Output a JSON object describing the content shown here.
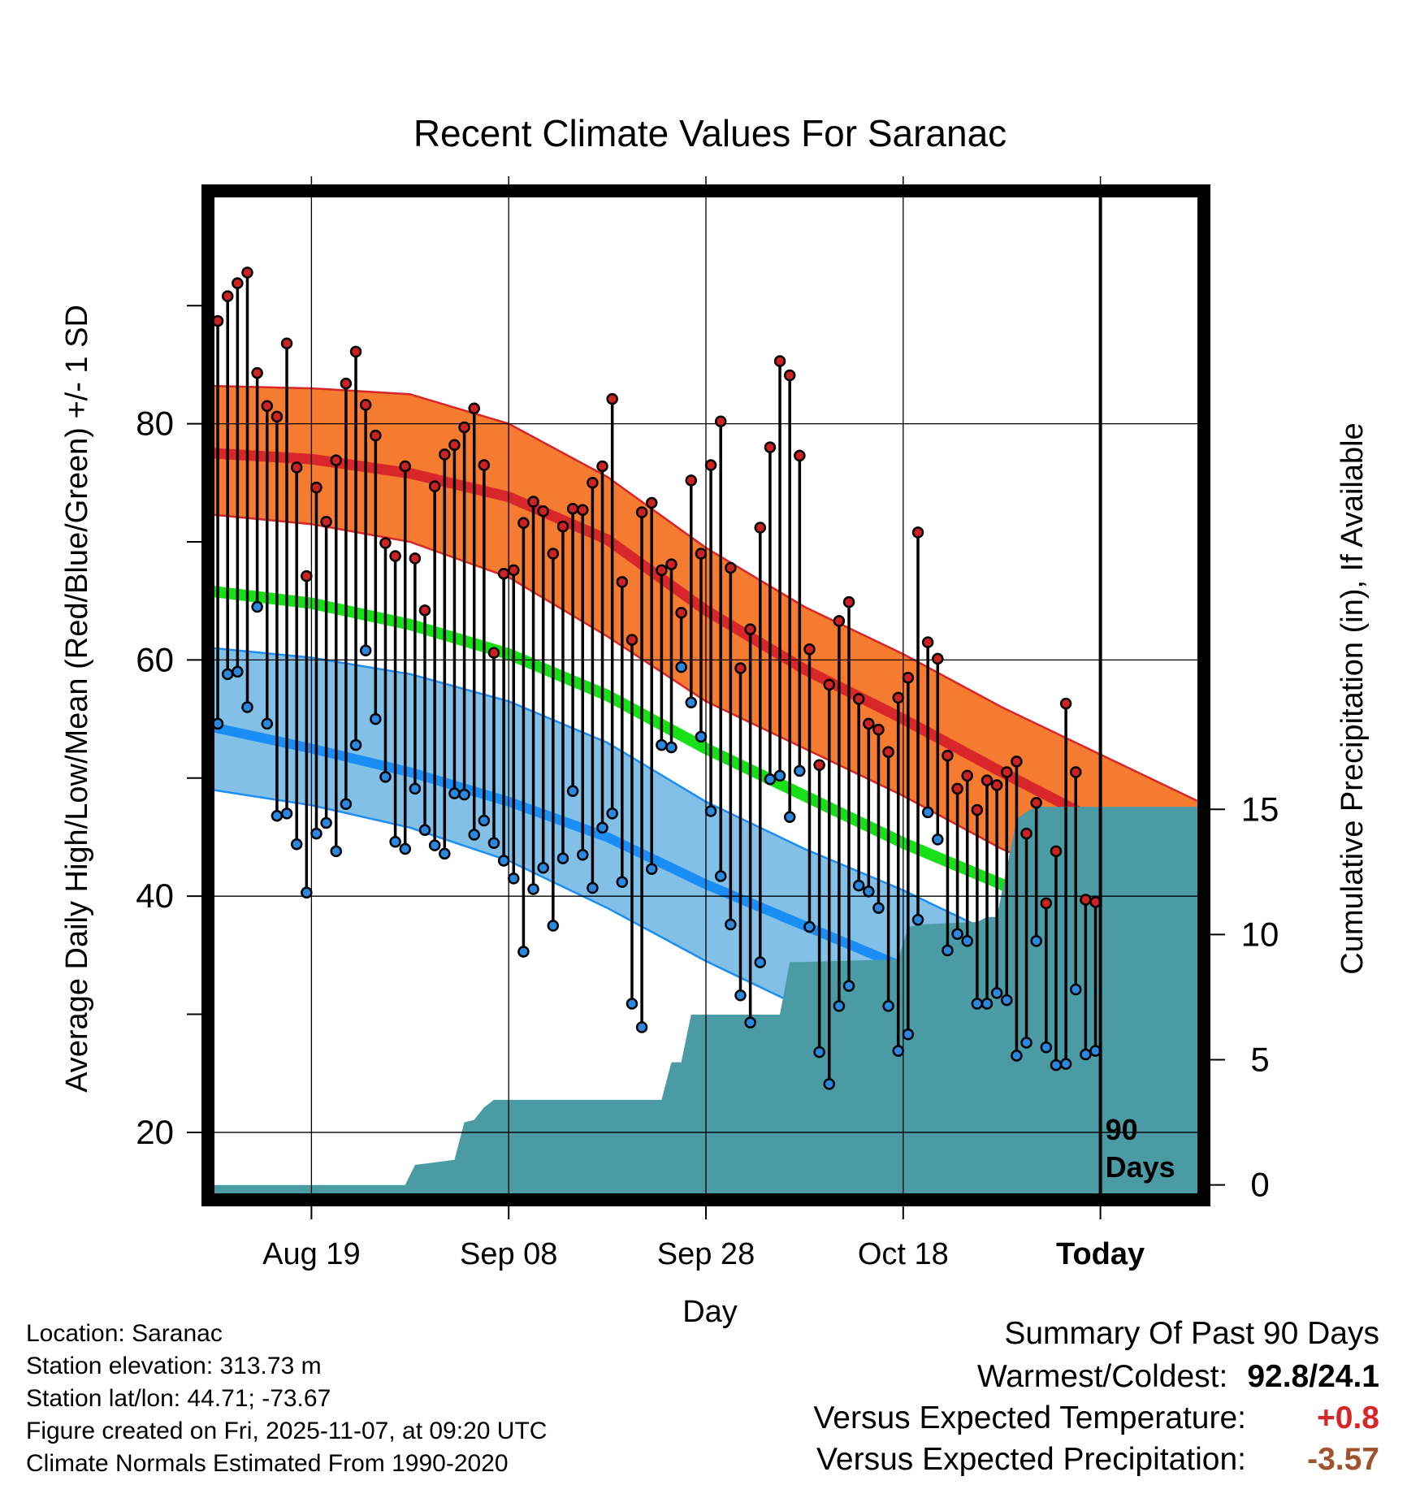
{
  "chart_data": {
    "type": "climate-daily",
    "title": "Recent Climate Values For Saranac",
    "xlabel": "Day",
    "ylabel_left": "Average Daily High/Low/Mean (Red/Blue/Green) +/- 1 SD",
    "ylabel_right": "Cumulative Precipitation (in), If Available",
    "x_ticks": [
      {
        "day": 10,
        "label": "Aug 19"
      },
      {
        "day": 30,
        "label": "Sep 08"
      },
      {
        "day": 50,
        "label": "Sep 28"
      },
      {
        "day": 70,
        "label": "Oct 18"
      },
      {
        "day": 90,
        "label": "Today"
      }
    ],
    "xlim": [
      0,
      100
    ],
    "y_left_ticks": [
      20,
      40,
      60,
      80
    ],
    "y_left_minor_ticks": [
      30,
      50,
      70,
      90
    ],
    "ylim_left": [
      14.7,
      99.3
    ],
    "y_right_ticks": [
      0,
      5,
      10,
      15
    ],
    "ylim_right": [
      -0.4,
      39.5
    ],
    "today_marker": {
      "day": 90,
      "label_line1": "90",
      "label_line2": "Days"
    },
    "normals": {
      "days": [
        0,
        10,
        20,
        30,
        40,
        50,
        60,
        70,
        80,
        90,
        100
      ],
      "high_mean": [
        77.5,
        77.0,
        75.8,
        73.8,
        70.2,
        64.2,
        59.2,
        55.0,
        50.5,
        46.2,
        42.0
      ],
      "high_sd_upper": [
        83.2,
        83.0,
        82.5,
        80.0,
        75.5,
        69.5,
        64.5,
        60.5,
        56.0,
        52.0,
        48.0
      ],
      "high_sd_lower": [
        72.3,
        71.5,
        70.0,
        67.0,
        62.0,
        56.5,
        52.5,
        48.5,
        44.0,
        40.5,
        36.5
      ],
      "daily_mean": [
        65.8,
        64.8,
        63.0,
        60.5,
        57.0,
        52.5,
        48.5,
        44.5,
        41.0,
        36.5,
        32.5
      ],
      "low_mean": [
        54.3,
        52.5,
        50.5,
        48.0,
        45.0,
        41.0,
        37.5,
        34.0,
        30.5,
        27.2,
        23.5
      ],
      "low_sd_upper": [
        61.0,
        60.2,
        58.8,
        56.5,
        53.0,
        48.0,
        44.0,
        40.5,
        36.5,
        32.5,
        28.5
      ],
      "low_sd_lower": [
        49.0,
        47.7,
        45.8,
        43.0,
        39.0,
        34.5,
        30.5,
        26.5,
        22.5,
        18.5,
        15.0
      ]
    },
    "observations": {
      "highs": [
        88.7,
        90.8,
        91.9,
        92.8,
        84.3,
        81.5,
        80.6,
        86.8,
        76.3,
        67.1,
        74.6,
        71.7,
        76.9,
        83.4,
        86.1,
        81.6,
        79.0,
        69.9,
        68.8,
        76.4,
        68.6,
        64.2,
        74.7,
        77.4,
        78.2,
        79.7,
        81.3,
        76.5,
        60.6,
        67.3,
        67.6,
        71.6,
        73.4,
        72.6,
        69.0,
        71.3,
        72.8,
        72.7,
        75.0,
        76.4,
        82.1,
        66.6,
        61.7,
        72.5,
        73.3,
        67.6,
        68.1,
        64.0,
        75.2,
        69.0,
        76.5,
        80.2,
        67.8,
        59.3,
        62.6,
        71.2,
        78.0,
        85.3,
        84.1,
        77.3,
        60.9,
        51.1,
        57.9,
        63.3,
        64.9,
        56.7,
        54.6,
        54.1,
        52.2,
        56.8,
        58.5,
        70.8,
        61.5,
        60.1,
        51.9,
        49.1,
        50.2,
        47.3,
        49.8,
        49.4,
        50.5,
        51.4,
        45.3,
        47.9,
        39.4,
        43.8,
        56.3,
        50.5,
        39.7,
        39.5
      ],
      "lows": [
        54.6,
        58.8,
        59.0,
        56.0,
        64.5,
        54.6,
        46.8,
        47.0,
        44.4,
        40.3,
        45.3,
        46.2,
        43.8,
        47.8,
        52.8,
        60.8,
        55.0,
        50.1,
        44.6,
        44.0,
        49.1,
        45.6,
        44.3,
        43.6,
        48.7,
        48.6,
        45.2,
        46.4,
        44.5,
        43.0,
        41.5,
        35.3,
        40.6,
        42.4,
        37.5,
        43.2,
        48.9,
        43.5,
        40.7,
        45.8,
        47.0,
        41.2,
        30.9,
        28.9,
        42.3,
        52.8,
        52.6,
        59.4,
        56.4,
        53.5,
        47.2,
        41.7,
        37.6,
        31.6,
        29.3,
        34.4,
        49.9,
        50.2,
        46.7,
        50.6,
        37.4,
        26.8,
        24.1,
        30.7,
        32.4,
        40.9,
        40.4,
        39.0,
        30.7,
        26.9,
        28.3,
        38.0,
        47.1,
        44.8,
        35.4,
        36.8,
        36.2,
        30.9,
        30.9,
        31.8,
        31.2,
        26.5,
        27.6,
        36.2,
        27.2,
        25.7,
        25.8,
        32.1,
        26.6,
        26.9
      ]
    },
    "precipitation": {
      "days": [
        0,
        19.5,
        20.5,
        24.5,
        25.5,
        26.5,
        27.5,
        28.5,
        29.5,
        45.5,
        46.5,
        47.5,
        48.5,
        57.5,
        58.5,
        59.5,
        68.5,
        69.5,
        70.5,
        71.5,
        77.5,
        78.5,
        79.5,
        81.5,
        82.5,
        83.5,
        100
      ],
      "cumulative": [
        0,
        0,
        0.8,
        1.0,
        2.5,
        2.6,
        3.1,
        3.4,
        3.4,
        3.4,
        4.9,
        4.9,
        6.8,
        6.8,
        8.9,
        8.9,
        9.0,
        9.0,
        10.3,
        10.4,
        10.5,
        10.7,
        10.7,
        14.6,
        14.9,
        15.1,
        15.1
      ],
      "cumulative_scaled_note": "cumulative values in inches"
    }
  },
  "info": {
    "location": "Location: Saranac",
    "elevation": "Station elevation: 313.73 m",
    "latlon": "Station lat/lon: 44.71; -73.67",
    "created": "Figure created on Fri, 2025-11-07, at 09:20 UTC",
    "normals_period": "Climate Normals Estimated From 1990-2020"
  },
  "summary": {
    "title": "Summary Of Past 90 Days",
    "warmest_label": "Warmest/Coldest:",
    "warmest_value": "92.8/24.1",
    "temp_label": "Versus Expected Temperature:",
    "temp_value": "+0.8",
    "precip_label": "Versus Expected Precipitation:",
    "precip_value": "-3.57"
  },
  "colors": {
    "high_band": "#f47b2f",
    "high_line": "#d8262a",
    "high_edge": "#d8262a",
    "mean_line": "#17e017",
    "low_band": "#82c0e8",
    "low_line": "#1a8ef5",
    "low_edge": "#1a8ef5",
    "precip": "#4b9ba5",
    "high_dot": "#cc2222",
    "low_dot": "#2a88e0",
    "temp_delta": "#d62728",
    "precip_delta": "#a0522d"
  }
}
